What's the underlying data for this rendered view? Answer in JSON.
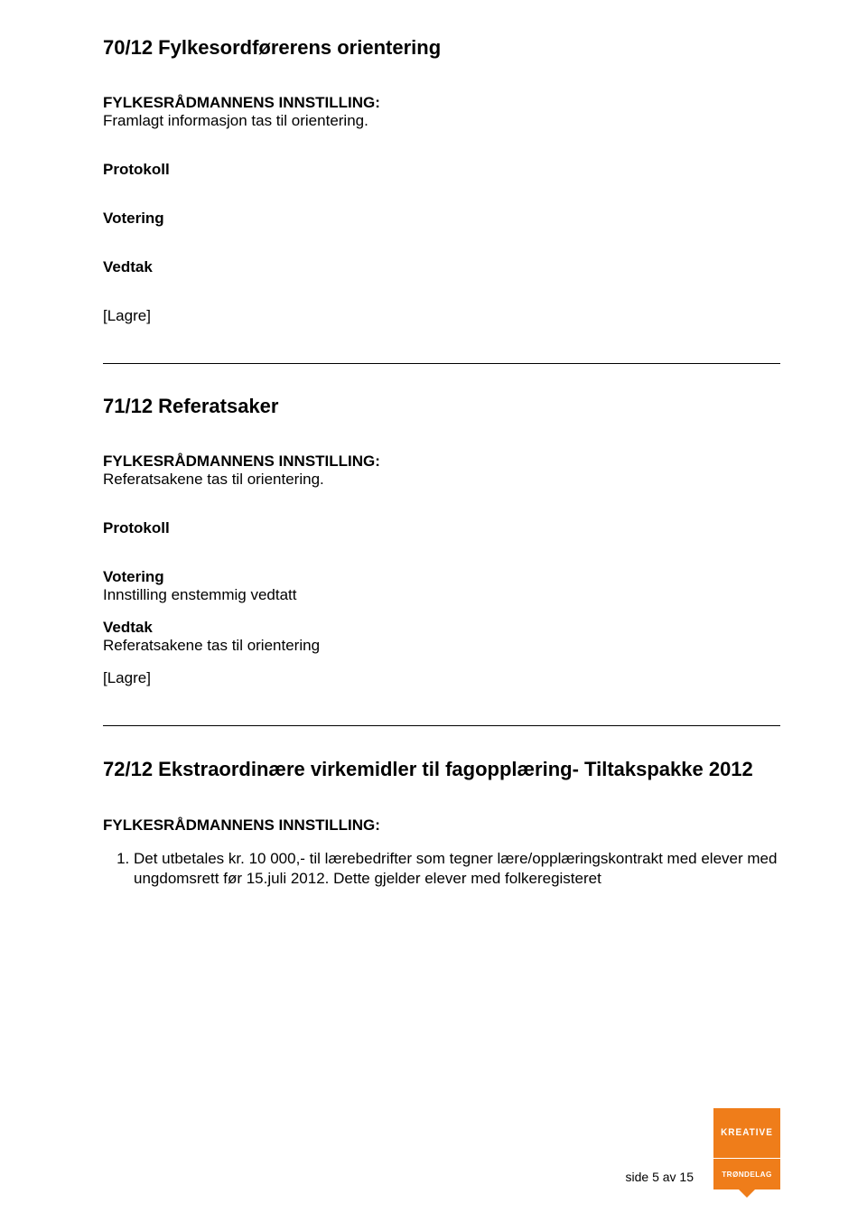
{
  "doc": {
    "section1": {
      "heading": "70/12 Fylkesordførerens orientering",
      "instilling_label": "FYLKESRÅDMANNENS INNSTILLING:",
      "instilling_body": "Framlagt informasjon tas til orientering.",
      "protokoll": "Protokoll",
      "votering": "Votering",
      "vedtak": "Vedtak",
      "lagre": "[Lagre]"
    },
    "section2": {
      "heading": "71/12 Referatsaker",
      "instilling_label": "FYLKESRÅDMANNENS INNSTILLING:",
      "instilling_body": "Referatsakene tas til orientering.",
      "protokoll": "Protokoll",
      "votering_label": "Votering",
      "votering_body": "Innstilling enstemmig vedtatt",
      "vedtak_label": "Vedtak",
      "vedtak_body": "Referatsakene tas til orientering",
      "lagre": "[Lagre]"
    },
    "section3": {
      "heading": "72/12 Ekstraordinære virkemidler til fagopplæring- Tiltakspakke 2012",
      "instilling_label": "FYLKESRÅDMANNENS INNSTILLING:",
      "item1": "Det utbetales kr. 10 000,- til lærebedrifter som tegner lære/opplæringskontrakt med elever med ungdomsrett før 15.juli 2012. Dette gjelder elever med folkeregisteret"
    },
    "footer": {
      "page_text": "side 5 av 15",
      "logo_top": "KREATIVE",
      "logo_bottom": "TRØNDELAG"
    },
    "colors": {
      "text": "#000000",
      "bg": "#ffffff",
      "accent": "#ef7d1a",
      "logo_text": "#ffffff"
    }
  }
}
